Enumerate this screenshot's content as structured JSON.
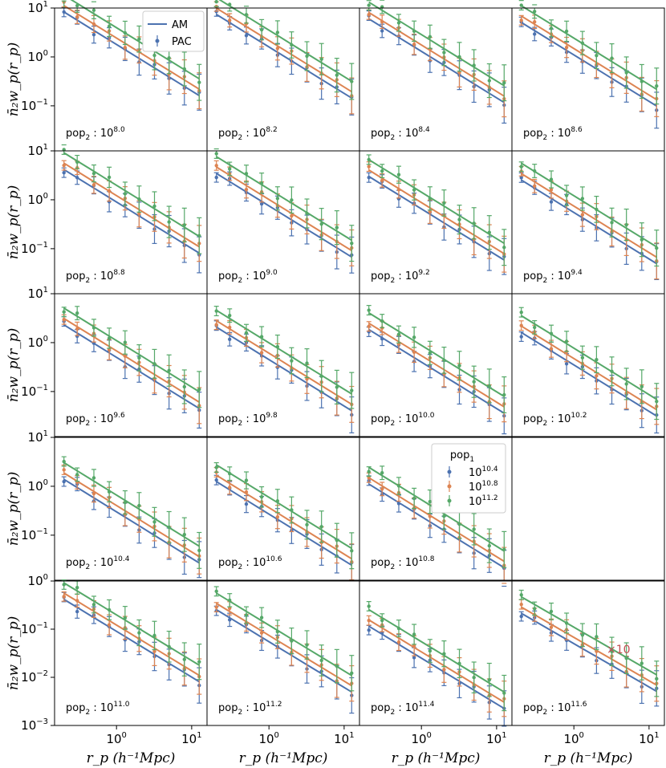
{
  "chart_data": {
    "type": "line+errorbar-grid",
    "ylabel": "n̄₂w_p(r_p)",
    "xlabel": "r_p (h⁻¹Mpc)",
    "xscale": "log",
    "yscale": "log",
    "xlim": [
      0.15,
      16
    ],
    "ylim_rows": [
      [
        0.012,
        10
      ],
      [
        0.012,
        10
      ],
      [
        0.012,
        10
      ],
      [
        0.012,
        10
      ],
      [
        0.001,
        1
      ]
    ],
    "yticks_rows": [
      [
        "10¹",
        "10⁰",
        "10⁻¹"
      ],
      [
        "10¹",
        "10⁰",
        "10⁻¹"
      ],
      [
        "10¹",
        "10⁰",
        "10⁻¹"
      ],
      [
        "10¹",
        "10⁰",
        "10⁻¹"
      ],
      [
        "10⁰",
        "10⁻¹",
        "10⁻²",
        "10⁻³"
      ]
    ],
    "xticks": [
      "10⁰",
      "10¹"
    ],
    "x": [
      0.2,
      0.3,
      0.5,
      0.8,
      1.3,
      2.0,
      3.2,
      5.0,
      8.0,
      12.6
    ],
    "legend_model": {
      "line": "AM",
      "points": "PAC"
    },
    "legend_pop1": {
      "title": "pop₁",
      "entries": [
        {
          "label": "10^10.4",
          "color": "#4c72b0"
        },
        {
          "label": "10^10.8",
          "color": "#dd8452"
        },
        {
          "label": "10^11.2",
          "color": "#55a868"
        }
      ]
    },
    "annotation": {
      "text": "×10",
      "panel": "pop₂ : 10^11.6",
      "color": "#c44e52"
    },
    "panels": [
      {
        "pop2": "10^8.0",
        "row": 0,
        "col": 0,
        "amp": 1.8,
        "slope": 0.95
      },
      {
        "pop2": "10^8.2",
        "row": 0,
        "col": 1,
        "amp": 1.6,
        "slope": 0.95
      },
      {
        "pop2": "10^8.4",
        "row": 0,
        "col": 2,
        "amp": 1.3,
        "slope": 0.95
      },
      {
        "pop2": "10^8.6",
        "row": 0,
        "col": 3,
        "amp": 1.1,
        "slope": 0.95
      },
      {
        "pop2": "10^8.8",
        "row": 1,
        "col": 0,
        "amp": 0.9,
        "slope": 0.95
      },
      {
        "pop2": "10^9.0",
        "row": 1,
        "col": 1,
        "amp": 0.75,
        "slope": 0.95
      },
      {
        "pop2": "10^9.2",
        "row": 1,
        "col": 2,
        "amp": 0.65,
        "slope": 0.95
      },
      {
        "pop2": "10^9.4",
        "row": 1,
        "col": 3,
        "amp": 0.55,
        "slope": 0.95
      },
      {
        "pop2": "10^9.6",
        "row": 2,
        "col": 0,
        "amp": 0.5,
        "slope": 0.95
      },
      {
        "pop2": "10^9.8",
        "row": 2,
        "col": 1,
        "amp": 0.45,
        "slope": 0.95
      },
      {
        "pop2": "10^10.0",
        "row": 2,
        "col": 2,
        "amp": 0.4,
        "slope": 0.95
      },
      {
        "pop2": "10^10.2",
        "row": 2,
        "col": 3,
        "amp": 0.35,
        "slope": 0.95
      },
      {
        "pop2": "10^10.4",
        "row": 3,
        "col": 0,
        "amp": 0.3,
        "slope": 0.95
      },
      {
        "pop2": "10^10.6",
        "row": 3,
        "col": 1,
        "amp": 0.27,
        "slope": 0.95
      },
      {
        "pop2": "10^10.8",
        "row": 3,
        "col": 2,
        "amp": 0.24,
        "slope": 0.95
      },
      {
        "pop2": "10^11.0",
        "row": 4,
        "col": 0,
        "amp": 0.09,
        "slope": 0.95
      },
      {
        "pop2": "10^11.2",
        "row": 4,
        "col": 1,
        "amp": 0.055,
        "slope": 0.95
      },
      {
        "pop2": "10^11.4",
        "row": 4,
        "col": 2,
        "amp": 0.025,
        "slope": 0.95
      },
      {
        "pop2": "10^11.6",
        "row": 4,
        "col": 3,
        "amp": 0.05,
        "slope": 0.9
      }
    ],
    "pop1_scale": [
      1.0,
      1.35,
      2.2
    ]
  }
}
